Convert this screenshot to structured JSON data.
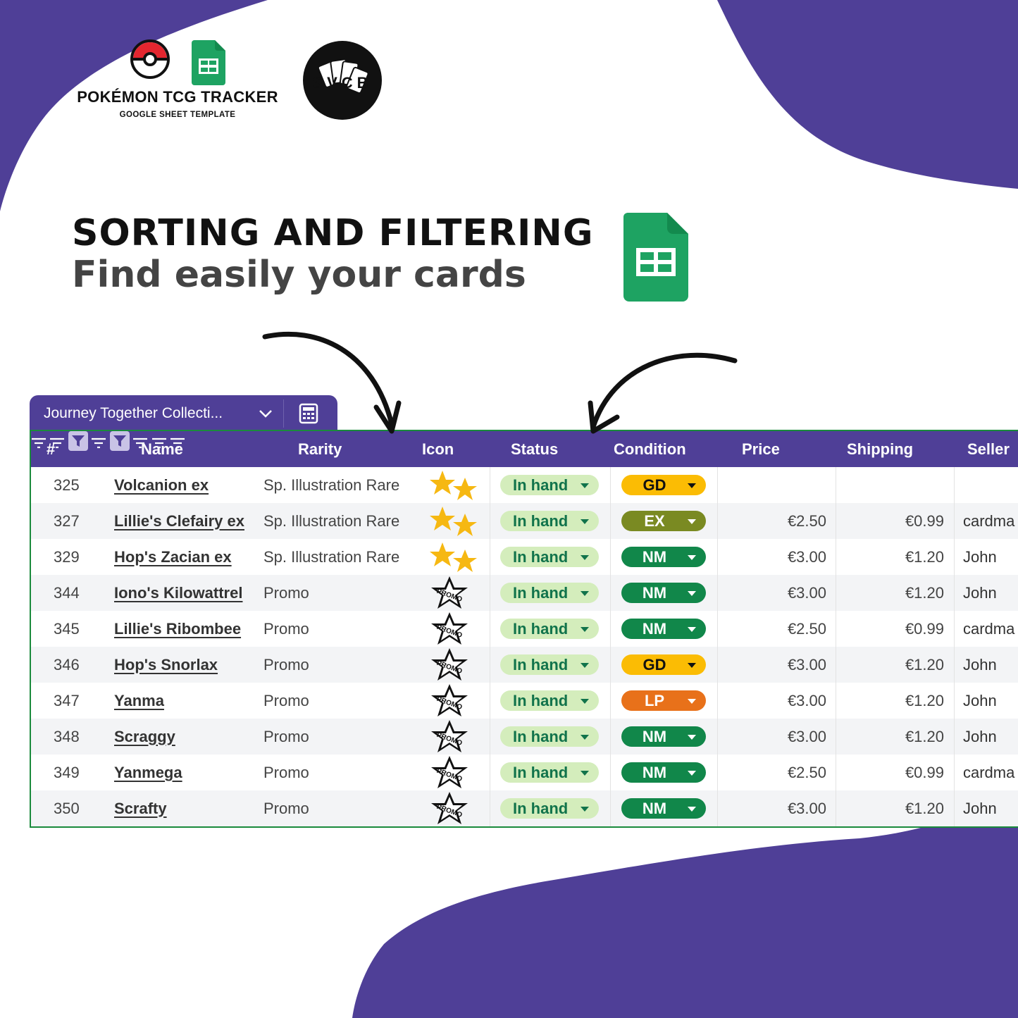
{
  "brand": {
    "title": "POKÉMON TCG TRACKER",
    "subtitle": "GOOGLE SHEET TEMPLATE",
    "logo_text": "SVCB"
  },
  "headline": {
    "line1": "SORTING AND FILTERING",
    "line2": "Find easily your cards"
  },
  "colors": {
    "accent_purple": "#4f3f97",
    "sheets_green": "#1ea362",
    "status_in_hand_bg": "#d4edbc",
    "status_in_hand_text": "#11734b",
    "condition": {
      "GD": "#fbbc04",
      "EX": "#7a8a22",
      "NM": "#11874a",
      "LP": "#e8711a"
    }
  },
  "sheet": {
    "tab_name": "Journey Together Collecti...",
    "tab_icons": [
      "chevron-down-icon",
      "calculator-icon"
    ],
    "columns": [
      {
        "label": "#",
        "icon": "sort-lines-icon"
      },
      {
        "label": "Name",
        "icon": "sort-lines-icon"
      },
      {
        "label": "Rarity",
        "icon": "filter-active-icon"
      },
      {
        "label": "Icon",
        "icon": "sort-lines-icon"
      },
      {
        "label": "Status",
        "icon": "filter-active-icon"
      },
      {
        "label": "Condition",
        "icon": "sort-lines-icon"
      },
      {
        "label": "Price",
        "icon": "sort-lines-icon"
      },
      {
        "label": "Shipping",
        "icon": "sort-lines-icon"
      },
      {
        "label": "Seller",
        "icon": ""
      }
    ],
    "rows": [
      {
        "num": "325",
        "name": "Volcanion ex",
        "rarity": "Sp. Illustration Rare",
        "icon": "double-star-icon",
        "status": "In hand",
        "condition": "GD",
        "price": "",
        "shipping": "",
        "seller": ""
      },
      {
        "num": "327",
        "name": "Lillie's Clefairy ex",
        "rarity": "Sp. Illustration Rare",
        "icon": "double-star-icon",
        "status": "In hand",
        "condition": "EX",
        "price": "€2.50",
        "shipping": "€0.99",
        "seller": "cardma"
      },
      {
        "num": "329",
        "name": "Hop's Zacian ex",
        "rarity": "Sp. Illustration Rare",
        "icon": "double-star-icon",
        "status": "In hand",
        "condition": "NM",
        "price": "€3.00",
        "shipping": "€1.20",
        "seller": "John"
      },
      {
        "num": "344",
        "name": "Iono's Kilowattrel",
        "rarity": "Promo",
        "icon": "promo-star-icon",
        "status": "In hand",
        "condition": "NM",
        "price": "€3.00",
        "shipping": "€1.20",
        "seller": "John"
      },
      {
        "num": "345",
        "name": "Lillie's Ribombee",
        "rarity": "Promo",
        "icon": "promo-star-icon",
        "status": "In hand",
        "condition": "NM",
        "price": "€2.50",
        "shipping": "€0.99",
        "seller": "cardma"
      },
      {
        "num": "346",
        "name": "Hop's Snorlax",
        "rarity": "Promo",
        "icon": "promo-star-icon",
        "status": "In hand",
        "condition": "GD",
        "price": "€3.00",
        "shipping": "€1.20",
        "seller": "John"
      },
      {
        "num": "347",
        "name": "Yanma",
        "rarity": "Promo",
        "icon": "promo-star-icon",
        "status": "In hand",
        "condition": "LP",
        "price": "€3.00",
        "shipping": "€1.20",
        "seller": "John"
      },
      {
        "num": "348",
        "name": "Scraggy",
        "rarity": "Promo",
        "icon": "promo-star-icon",
        "status": "In hand",
        "condition": "NM",
        "price": "€3.00",
        "shipping": "€1.20",
        "seller": "John"
      },
      {
        "num": "349",
        "name": "Yanmega",
        "rarity": "Promo",
        "icon": "promo-star-icon",
        "status": "In hand",
        "condition": "NM",
        "price": "€2.50",
        "shipping": "€0.99",
        "seller": "cardma"
      },
      {
        "num": "350",
        "name": "Scrafty",
        "rarity": "Promo",
        "icon": "promo-star-icon",
        "status": "In hand",
        "condition": "NM",
        "price": "€3.00",
        "shipping": "€1.20",
        "seller": "John"
      }
    ]
  }
}
